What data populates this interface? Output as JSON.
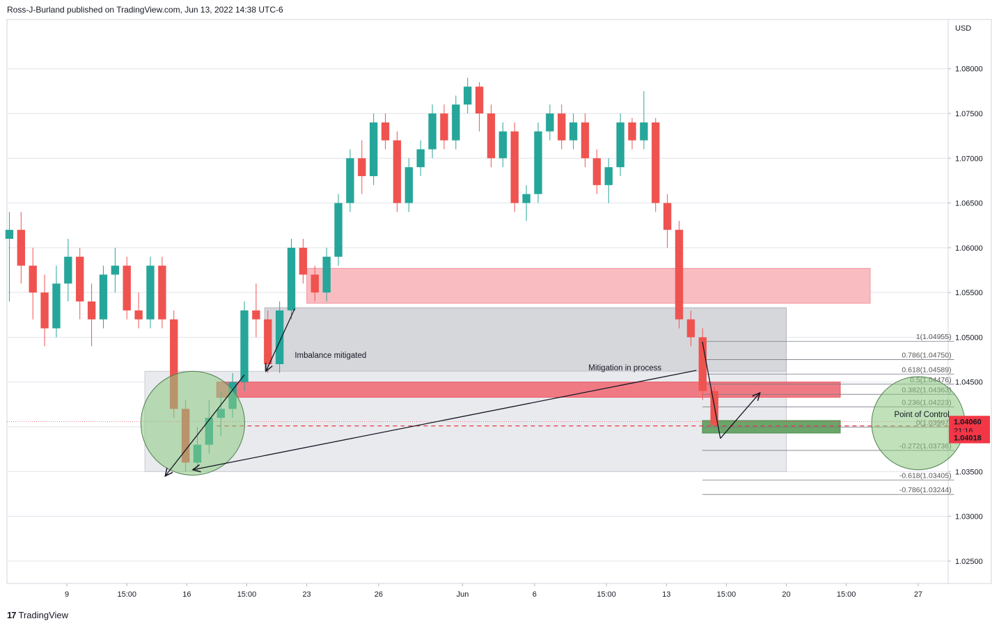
{
  "header": {
    "attribution": "Ross-J-Burland published on TradingView.com, Jun 13, 2022 14:38 UTC-6"
  },
  "footer": {
    "brand": "TradingView"
  },
  "colors": {
    "up": "#26a69a",
    "down": "#ef5350",
    "grid": "#e0e3eb",
    "price_tag": "#f23645",
    "fib": "#787b86"
  },
  "chart_data": {
    "type": "candlestick",
    "currency_label": "USD",
    "y_ticks": [
      "1.08000",
      "1.07500",
      "1.07000",
      "1.06500",
      "1.06000",
      "1.05500",
      "1.05000",
      "1.04500",
      "1.04000",
      "1.03500",
      "1.03000",
      "1.02500"
    ],
    "y_tick_values": [
      1.08,
      1.075,
      1.07,
      1.065,
      1.06,
      1.055,
      1.05,
      1.045,
      1.04,
      1.035,
      1.03,
      1.025
    ],
    "ylim": [
      1.0225,
      1.0855
    ],
    "x_ticks": [
      "9",
      "15:00",
      "16",
      "15:00",
      "23",
      "26",
      "Jun",
      "6",
      "15:00",
      "13",
      "15:00",
      "20",
      "15:00",
      "27"
    ],
    "x_tick_positions": [
      5,
      10,
      15,
      20,
      25,
      31,
      38,
      44,
      50,
      55,
      60,
      65,
      70,
      76
    ],
    "xlim": [
      0,
      78.5
    ],
    "candles": [
      [
        1.061,
        1.064,
        1.054,
        1.062
      ],
      [
        1.062,
        1.064,
        1.056,
        1.058
      ],
      [
        1.058,
        1.06,
        1.052,
        1.055
      ],
      [
        1.055,
        1.057,
        1.049,
        1.051
      ],
      [
        1.051,
        1.058,
        1.05,
        1.056
      ],
      [
        1.056,
        1.061,
        1.054,
        1.059
      ],
      [
        1.059,
        1.06,
        1.052,
        1.054
      ],
      [
        1.054,
        1.056,
        1.049,
        1.052
      ],
      [
        1.052,
        1.058,
        1.051,
        1.057
      ],
      [
        1.057,
        1.06,
        1.055,
        1.058
      ],
      [
        1.058,
        1.059,
        1.052,
        1.053
      ],
      [
        1.053,
        1.055,
        1.051,
        1.052
      ],
      [
        1.052,
        1.059,
        1.051,
        1.058
      ],
      [
        1.058,
        1.059,
        1.051,
        1.052
      ],
      [
        1.052,
        1.053,
        1.041,
        1.042
      ],
      [
        1.042,
        1.043,
        1.035,
        1.036
      ],
      [
        1.036,
        1.04,
        1.035,
        1.038
      ],
      [
        1.038,
        1.043,
        1.037,
        1.041
      ],
      [
        1.041,
        1.044,
        1.039,
        1.042
      ],
      [
        1.042,
        1.046,
        1.041,
        1.045
      ],
      [
        1.045,
        1.054,
        1.044,
        1.053
      ],
      [
        1.053,
        1.056,
        1.05,
        1.052
      ],
      [
        1.052,
        1.053,
        1.046,
        1.047
      ],
      [
        1.047,
        1.054,
        1.046,
        1.053
      ],
      [
        1.053,
        1.061,
        1.052,
        1.06
      ],
      [
        1.06,
        1.061,
        1.056,
        1.057
      ],
      [
        1.057,
        1.058,
        1.054,
        1.055
      ],
      [
        1.055,
        1.06,
        1.054,
        1.059
      ],
      [
        1.059,
        1.066,
        1.058,
        1.065
      ],
      [
        1.065,
        1.071,
        1.064,
        1.07
      ],
      [
        1.07,
        1.072,
        1.066,
        1.068
      ],
      [
        1.068,
        1.075,
        1.067,
        1.074
      ],
      [
        1.074,
        1.075,
        1.071,
        1.072
      ],
      [
        1.072,
        1.073,
        1.064,
        1.065
      ],
      [
        1.065,
        1.07,
        1.064,
        1.069
      ],
      [
        1.069,
        1.072,
        1.068,
        1.071
      ],
      [
        1.071,
        1.076,
        1.07,
        1.075
      ],
      [
        1.075,
        1.076,
        1.071,
        1.072
      ],
      [
        1.072,
        1.077,
        1.071,
        1.076
      ],
      [
        1.076,
        1.079,
        1.075,
        1.078
      ],
      [
        1.078,
        1.0785,
        1.073,
        1.075
      ],
      [
        1.075,
        1.076,
        1.069,
        1.07
      ],
      [
        1.07,
        1.074,
        1.069,
        1.073
      ],
      [
        1.073,
        1.074,
        1.064,
        1.065
      ],
      [
        1.065,
        1.067,
        1.063,
        1.066
      ],
      [
        1.066,
        1.074,
        1.065,
        1.073
      ],
      [
        1.073,
        1.076,
        1.072,
        1.075
      ],
      [
        1.075,
        1.076,
        1.071,
        1.072
      ],
      [
        1.072,
        1.075,
        1.071,
        1.074
      ],
      [
        1.074,
        1.075,
        1.069,
        1.07
      ],
      [
        1.07,
        1.071,
        1.066,
        1.067
      ],
      [
        1.067,
        1.07,
        1.065,
        1.069
      ],
      [
        1.069,
        1.075,
        1.068,
        1.074
      ],
      [
        1.074,
        1.0745,
        1.071,
        1.072
      ],
      [
        1.072,
        1.0775,
        1.071,
        1.074
      ],
      [
        1.074,
        1.0745,
        1.064,
        1.065
      ],
      [
        1.065,
        1.066,
        1.06,
        1.062
      ],
      [
        1.062,
        1.063,
        1.051,
        1.052
      ],
      [
        1.052,
        1.053,
        1.049,
        1.05
      ],
      [
        1.05,
        1.051,
        1.043,
        1.044
      ],
      [
        1.044,
        1.0445,
        1.04,
        1.0402
      ]
    ],
    "last_price": "1.04060",
    "countdown": "21:16",
    "price_tag_2": "1.04018",
    "zones": [
      {
        "x0": 25.0,
        "x1": 72.0,
        "y0": 1.0577,
        "y1": 1.0538,
        "fill": "#f8bcc1",
        "stroke": "#f29aa3"
      },
      {
        "x0": 21.5,
        "x1": 65.0,
        "y0": 1.0533,
        "y1": 1.0462,
        "fill": "#d6d7db",
        "stroke": "#b2b5be"
      },
      {
        "x0": 11.5,
        "x1": 65.0,
        "y0": 1.0462,
        "y1": 1.035,
        "fill": "#e9eaee",
        "stroke": "#c8cad1"
      },
      {
        "x0": 17.5,
        "x1": 69.5,
        "y0": 1.045,
        "y1": 1.0433,
        "fill": "#f07a83",
        "stroke": "#e8545f"
      },
      {
        "x0": 58.0,
        "x1": 69.5,
        "y0": 1.0407,
        "y1": 1.0393,
        "fill": "#6aa56a",
        "stroke": "#4e8f4e"
      }
    ],
    "fib_levels": [
      {
        "label": "1(1.04955)",
        "value": 1.04955
      },
      {
        "label": "0.786(1.04750)",
        "value": 1.0475
      },
      {
        "label": "0.618(1.04589)",
        "value": 1.04589
      },
      {
        "label": "0.5(1.04476)",
        "value": 1.04476
      },
      {
        "label": "0.382(1.04363)",
        "value": 1.04363
      },
      {
        "label": "0.236(1.04223)",
        "value": 1.04223
      },
      {
        "label": "0(1.03997)",
        "value": 1.03997
      },
      {
        "label": "-0.272(1.03736)",
        "value": 1.03736
      },
      {
        "label": "-0.618(1.03405)",
        "value": 1.03405
      },
      {
        "label": "-0.786(1.03244)",
        "value": 1.03244
      }
    ],
    "fib_x": [
      58.0,
      79.0
    ],
    "annotations": [
      {
        "text": "Imbalance mitigated",
        "x": 24.0,
        "y": 1.0477
      },
      {
        "text": "Mitigation in process",
        "x": 48.5,
        "y": 1.0463
      },
      {
        "text": "Point of Control",
        "x": 74.0,
        "y": 1.0411
      }
    ],
    "circles": [
      {
        "cx": 15.5,
        "cy": 1.0404,
        "r": 0.0058,
        "fill": "rgba(140,200,130,0.55)",
        "stroke": "#4f7f4f"
      },
      {
        "cx": 76.0,
        "cy": 1.0404,
        "r": 0.0052,
        "fill": "rgba(140,200,130,0.55)",
        "stroke": "#4f7f4f"
      }
    ],
    "dashed_level": 1.0401,
    "lines": [
      [
        57.5,
        1.0463,
        15.5,
        1.0352
      ],
      [
        19.8,
        1.0458,
        13.2,
        1.0345
      ],
      [
        24.0,
        1.0532,
        21.6,
        1.0462
      ],
      [
        58.0,
        1.0495,
        59.5,
        1.0387
      ],
      [
        59.5,
        1.0387,
        62.8,
        1.0438
      ]
    ]
  }
}
